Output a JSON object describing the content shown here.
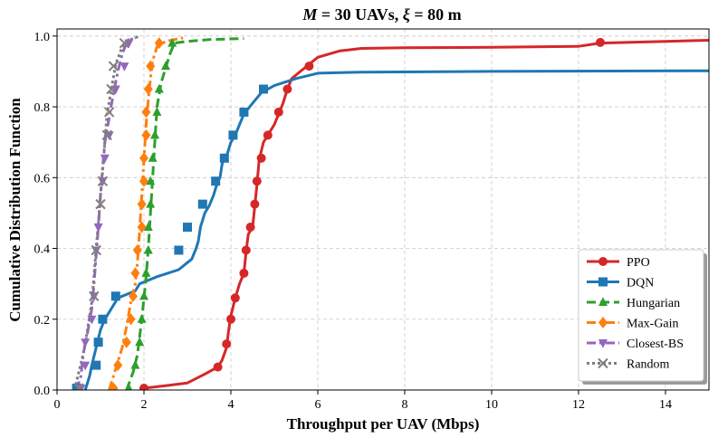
{
  "chart_data": {
    "type": "line",
    "title": "M = 30 UAVs, ξ = 80 m",
    "title_parts": {
      "var": "M",
      "mid": " = 30 UAVs, ",
      "sym": "ξ",
      "end": " = 80 m"
    },
    "xlabel": "Throughput per UAV (Mbps)",
    "ylabel": "Cumulative Distribution Function",
    "xlim": [
      0,
      15
    ],
    "ylim": [
      0,
      1.02
    ],
    "xticks": [
      0,
      2,
      4,
      6,
      8,
      10,
      12,
      14
    ],
    "yticks": [
      0.0,
      0.2,
      0.4,
      0.6,
      0.8,
      1.0
    ],
    "xtick_labels": [
      "0",
      "2",
      "4",
      "6",
      "8",
      "10",
      "12",
      "14"
    ],
    "ytick_labels": [
      "0.0",
      "0.2",
      "0.4",
      "0.6",
      "0.8",
      "1.0"
    ],
    "grid": true,
    "legend_position": "bottom-right",
    "series": [
      {
        "name": "PPO",
        "color": "#d62728",
        "dash": "solid",
        "marker": "circle",
        "points": [
          [
            2.0,
            0.0
          ],
          [
            2.0,
            0.005
          ],
          [
            2.5,
            0.012
          ],
          [
            3.0,
            0.02
          ],
          [
            3.4,
            0.045
          ],
          [
            3.7,
            0.065
          ],
          [
            3.8,
            0.085
          ],
          [
            3.9,
            0.12
          ],
          [
            3.95,
            0.17
          ],
          [
            4.0,
            0.21
          ],
          [
            4.1,
            0.26
          ],
          [
            4.2,
            0.3
          ],
          [
            4.3,
            0.33
          ],
          [
            4.35,
            0.39
          ],
          [
            4.4,
            0.44
          ],
          [
            4.5,
            0.46
          ],
          [
            4.55,
            0.52
          ],
          [
            4.6,
            0.58
          ],
          [
            4.65,
            0.65
          ],
          [
            4.75,
            0.7
          ],
          [
            4.85,
            0.72
          ],
          [
            5.0,
            0.75
          ],
          [
            5.1,
            0.78
          ],
          [
            5.2,
            0.81
          ],
          [
            5.3,
            0.85
          ],
          [
            5.4,
            0.88
          ],
          [
            5.6,
            0.9
          ],
          [
            5.8,
            0.92
          ],
          [
            6.0,
            0.94
          ],
          [
            6.5,
            0.958
          ],
          [
            7.0,
            0.965
          ],
          [
            8.0,
            0.967
          ],
          [
            10.0,
            0.968
          ],
          [
            12.0,
            0.971
          ],
          [
            12.5,
            0.98
          ],
          [
            14.0,
            0.985
          ],
          [
            15.0,
            0.988
          ]
        ],
        "marker_points": [
          [
            2.0,
            0.005
          ],
          [
            3.7,
            0.065
          ],
          [
            3.9,
            0.13
          ],
          [
            4.0,
            0.2
          ],
          [
            4.1,
            0.26
          ],
          [
            4.3,
            0.33
          ],
          [
            4.35,
            0.395
          ],
          [
            4.45,
            0.46
          ],
          [
            4.55,
            0.525
          ],
          [
            4.6,
            0.59
          ],
          [
            4.7,
            0.655
          ],
          [
            4.85,
            0.72
          ],
          [
            5.1,
            0.785
          ],
          [
            5.3,
            0.85
          ],
          [
            5.8,
            0.915
          ],
          [
            12.5,
            0.982
          ]
        ]
      },
      {
        "name": "DQN",
        "color": "#1f77b4",
        "dash": "solid",
        "marker": "square",
        "points": [
          [
            0.65,
            0.0
          ],
          [
            0.75,
            0.04
          ],
          [
            0.8,
            0.07
          ],
          [
            0.9,
            0.12
          ],
          [
            1.0,
            0.17
          ],
          [
            1.1,
            0.2
          ],
          [
            1.3,
            0.24
          ],
          [
            1.4,
            0.26
          ],
          [
            1.6,
            0.27
          ],
          [
            1.8,
            0.28
          ],
          [
            1.9,
            0.3
          ],
          [
            2.3,
            0.32
          ],
          [
            2.8,
            0.34
          ],
          [
            2.9,
            0.35
          ],
          [
            3.1,
            0.37
          ],
          [
            3.2,
            0.4
          ],
          [
            3.25,
            0.42
          ],
          [
            3.3,
            0.46
          ],
          [
            3.4,
            0.5
          ],
          [
            3.5,
            0.52
          ],
          [
            3.6,
            0.55
          ],
          [
            3.7,
            0.59
          ],
          [
            3.75,
            0.6
          ],
          [
            3.8,
            0.64
          ],
          [
            3.9,
            0.66
          ],
          [
            4.0,
            0.7
          ],
          [
            4.1,
            0.72
          ],
          [
            4.2,
            0.75
          ],
          [
            4.3,
            0.78
          ],
          [
            4.5,
            0.81
          ],
          [
            4.7,
            0.84
          ],
          [
            5.0,
            0.86
          ],
          [
            5.5,
            0.88
          ],
          [
            6.0,
            0.895
          ],
          [
            7.0,
            0.898
          ],
          [
            10.0,
            0.9
          ],
          [
            15.0,
            0.902
          ]
        ],
        "marker_points": [
          [
            0.45,
            0.005
          ],
          [
            0.9,
            0.07
          ],
          [
            0.95,
            0.135
          ],
          [
            1.05,
            0.2
          ],
          [
            1.35,
            0.265
          ],
          [
            2.8,
            0.395
          ],
          [
            3.0,
            0.46
          ],
          [
            3.35,
            0.525
          ],
          [
            3.65,
            0.59
          ],
          [
            3.85,
            0.655
          ],
          [
            4.05,
            0.72
          ],
          [
            4.3,
            0.785
          ],
          [
            4.75,
            0.85
          ]
        ]
      },
      {
        "name": "Hungarian",
        "color": "#2ca02c",
        "dash": "dashed",
        "marker": "triangle-up",
        "points": [
          [
            1.6,
            0.0
          ],
          [
            1.75,
            0.05
          ],
          [
            1.85,
            0.1
          ],
          [
            1.9,
            0.15
          ],
          [
            1.95,
            0.2
          ],
          [
            2.0,
            0.26
          ],
          [
            2.05,
            0.32
          ],
          [
            2.1,
            0.4
          ],
          [
            2.15,
            0.5
          ],
          [
            2.2,
            0.6
          ],
          [
            2.25,
            0.7
          ],
          [
            2.3,
            0.8
          ],
          [
            2.4,
            0.87
          ],
          [
            2.5,
            0.91
          ],
          [
            2.6,
            0.95
          ],
          [
            2.7,
            0.98
          ],
          [
            3.0,
            0.985
          ],
          [
            3.5,
            0.99
          ],
          [
            4.3,
            0.993
          ]
        ],
        "marker_points": [
          [
            1.65,
            0.005
          ],
          [
            1.8,
            0.07
          ],
          [
            1.9,
            0.135
          ],
          [
            1.95,
            0.2
          ],
          [
            2.0,
            0.265
          ],
          [
            2.05,
            0.33
          ],
          [
            2.1,
            0.395
          ],
          [
            2.1,
            0.46
          ],
          [
            2.15,
            0.525
          ],
          [
            2.15,
            0.59
          ],
          [
            2.2,
            0.655
          ],
          [
            2.25,
            0.72
          ],
          [
            2.3,
            0.785
          ],
          [
            2.35,
            0.85
          ],
          [
            2.5,
            0.915
          ],
          [
            2.65,
            0.98
          ]
        ]
      },
      {
        "name": "Max-Gain",
        "color": "#ff7f0e",
        "dash": "dashdot",
        "marker": "diamond",
        "points": [
          [
            1.2,
            0.0
          ],
          [
            1.3,
            0.04
          ],
          [
            1.4,
            0.08
          ],
          [
            1.5,
            0.12
          ],
          [
            1.6,
            0.18
          ],
          [
            1.7,
            0.25
          ],
          [
            1.8,
            0.3
          ],
          [
            1.85,
            0.36
          ],
          [
            1.9,
            0.45
          ],
          [
            1.95,
            0.55
          ],
          [
            2.0,
            0.65
          ],
          [
            2.05,
            0.75
          ],
          [
            2.1,
            0.82
          ],
          [
            2.15,
            0.88
          ],
          [
            2.2,
            0.93
          ],
          [
            2.3,
            0.97
          ],
          [
            2.5,
            0.985
          ],
          [
            2.9,
            0.995
          ]
        ],
        "marker_points": [
          [
            1.3,
            0.005
          ],
          [
            1.4,
            0.07
          ],
          [
            1.6,
            0.135
          ],
          [
            1.7,
            0.2
          ],
          [
            1.75,
            0.265
          ],
          [
            1.8,
            0.33
          ],
          [
            1.85,
            0.395
          ],
          [
            1.95,
            0.46
          ],
          [
            1.95,
            0.525
          ],
          [
            2.0,
            0.59
          ],
          [
            2.0,
            0.655
          ],
          [
            2.05,
            0.72
          ],
          [
            2.05,
            0.785
          ],
          [
            2.1,
            0.85
          ],
          [
            2.15,
            0.915
          ],
          [
            2.35,
            0.98
          ]
        ]
      },
      {
        "name": "Closest-BS",
        "color": "#9467bd",
        "dash": "dashdot",
        "marker": "triangle-down",
        "points": [
          [
            0.45,
            0.0
          ],
          [
            0.55,
            0.04
          ],
          [
            0.6,
            0.1
          ],
          [
            0.7,
            0.16
          ],
          [
            0.8,
            0.23
          ],
          [
            0.85,
            0.3
          ],
          [
            0.9,
            0.38
          ],
          [
            0.95,
            0.46
          ],
          [
            1.0,
            0.55
          ],
          [
            1.05,
            0.63
          ],
          [
            1.1,
            0.7
          ],
          [
            1.2,
            0.77
          ],
          [
            1.3,
            0.84
          ],
          [
            1.4,
            0.9
          ],
          [
            1.5,
            0.95
          ],
          [
            1.6,
            0.98
          ],
          [
            1.8,
            0.995
          ]
        ],
        "marker_points": [
          [
            0.55,
            0.005
          ],
          [
            0.65,
            0.07
          ],
          [
            0.65,
            0.135
          ],
          [
            0.8,
            0.2
          ],
          [
            0.85,
            0.265
          ],
          [
            0.9,
            0.395
          ],
          [
            0.95,
            0.46
          ],
          [
            1.05,
            0.59
          ],
          [
            1.1,
            0.655
          ],
          [
            1.2,
            0.72
          ],
          [
            1.35,
            0.85
          ],
          [
            1.55,
            0.915
          ],
          [
            1.65,
            0.98
          ]
        ]
      },
      {
        "name": "Random",
        "color": "#7f7f7f",
        "dash": "dotted",
        "marker": "x",
        "points": [
          [
            0.4,
            0.0
          ],
          [
            0.5,
            0.05
          ],
          [
            0.6,
            0.1
          ],
          [
            0.7,
            0.17
          ],
          [
            0.8,
            0.25
          ],
          [
            0.85,
            0.32
          ],
          [
            0.9,
            0.4
          ],
          [
            0.95,
            0.47
          ],
          [
            1.0,
            0.55
          ],
          [
            1.05,
            0.62
          ],
          [
            1.1,
            0.7
          ],
          [
            1.15,
            0.78
          ],
          [
            1.25,
            0.85
          ],
          [
            1.35,
            0.92
          ],
          [
            1.5,
            0.97
          ],
          [
            1.7,
            0.99
          ],
          [
            1.9,
            1.0
          ]
        ],
        "marker_points": [
          [
            0.5,
            0.005
          ],
          [
            0.85,
            0.265
          ],
          [
            0.9,
            0.395
          ],
          [
            1.0,
            0.525
          ],
          [
            1.05,
            0.59
          ],
          [
            1.15,
            0.72
          ],
          [
            1.2,
            0.785
          ],
          [
            1.25,
            0.85
          ],
          [
            1.3,
            0.915
          ],
          [
            1.55,
            0.98
          ]
        ]
      }
    ]
  }
}
